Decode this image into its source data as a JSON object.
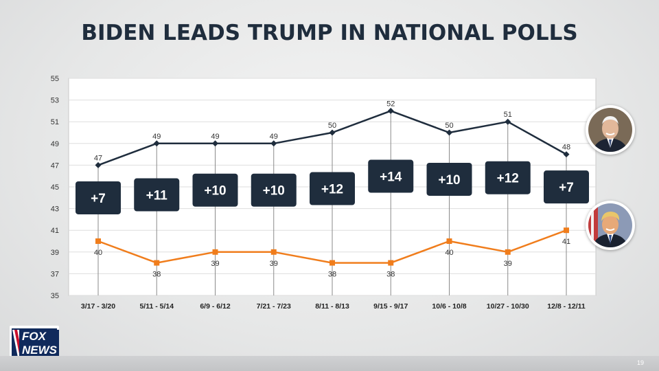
{
  "title": "BIDEN LEADS TRUMP IN NATIONAL POLLS",
  "logo": {
    "line1": "FOX",
    "line2": "NEWS"
  },
  "page_number": "19",
  "colors": {
    "biden": "#1f2d3d",
    "trump": "#f07d1c",
    "badge": "#1f2d3d",
    "title": "#1f2d3d"
  },
  "candidates": [
    {
      "name": "Biden",
      "icon": "biden-portrait"
    },
    {
      "name": "Trump",
      "icon": "trump-portrait"
    }
  ],
  "chart_data": {
    "type": "line",
    "title": "BIDEN LEADS TRUMP IN NATIONAL POLLS",
    "xlabel": "",
    "ylabel": "",
    "ylim": [
      35,
      55
    ],
    "yticks": [
      35,
      37,
      39,
      41,
      43,
      45,
      47,
      49,
      51,
      53,
      55
    ],
    "grid": true,
    "categories": [
      "3/17 - 3/20",
      "5/11 - 5/14",
      "6/9 - 6/12",
      "7/21 - 7/23",
      "8/11 - 8/13",
      "9/15 - 9/17",
      "10/6 - 10/8",
      "10/27 - 10/30",
      "12/8 - 12/11"
    ],
    "series": [
      {
        "name": "Biden",
        "color": "#1f2d3d",
        "marker": "diamond",
        "values": [
          47,
          49,
          49,
          49,
          50,
          52,
          50,
          51,
          48
        ]
      },
      {
        "name": "Trump",
        "color": "#f07d1c",
        "marker": "square",
        "values": [
          40,
          38,
          39,
          39,
          38,
          38,
          40,
          39,
          41
        ]
      }
    ],
    "margins": [
      "+7",
      "+11",
      "+10",
      "+10",
      "+12",
      "+14",
      "+10",
      "+12",
      "+7"
    ]
  }
}
